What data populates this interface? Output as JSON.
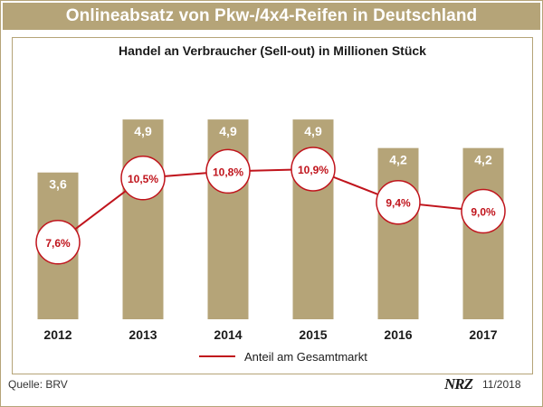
{
  "colors": {
    "bar": "#b5a478",
    "line": "#c0141c",
    "title_bg": "#b5a478",
    "frame": "#b5a478"
  },
  "chart_data": {
    "type": "bar",
    "title": "Onlineabsatz von Pkw-/4x4-Reifen in Deutschland",
    "subtitle": "Handel an Verbraucher (Sell-out) in Millionen Stück",
    "categories": [
      "2012",
      "2013",
      "2014",
      "2015",
      "2016",
      "2017"
    ],
    "values": [
      3.6,
      4.9,
      4.9,
      4.9,
      4.2,
      4.2
    ],
    "value_labels": [
      "3,6",
      "4,9",
      "4,9",
      "4,9",
      "4,2",
      "4,2"
    ],
    "ylim": [
      0,
      6
    ],
    "grid": false,
    "line_series": {
      "name": "Anteil am Gesamtmarkt",
      "values": [
        7.6,
        10.5,
        10.8,
        10.9,
        9.4,
        9.0
      ],
      "labels": [
        "7,6%",
        "10,5%",
        "10,8%",
        "10,9%",
        "9,4%",
        "9,0%"
      ],
      "ylim": [
        0,
        20
      ]
    },
    "legend": "bottom-center"
  },
  "footer": {
    "source": "Quelle: BRV",
    "logo": "NRZ",
    "date": "11/2018"
  }
}
